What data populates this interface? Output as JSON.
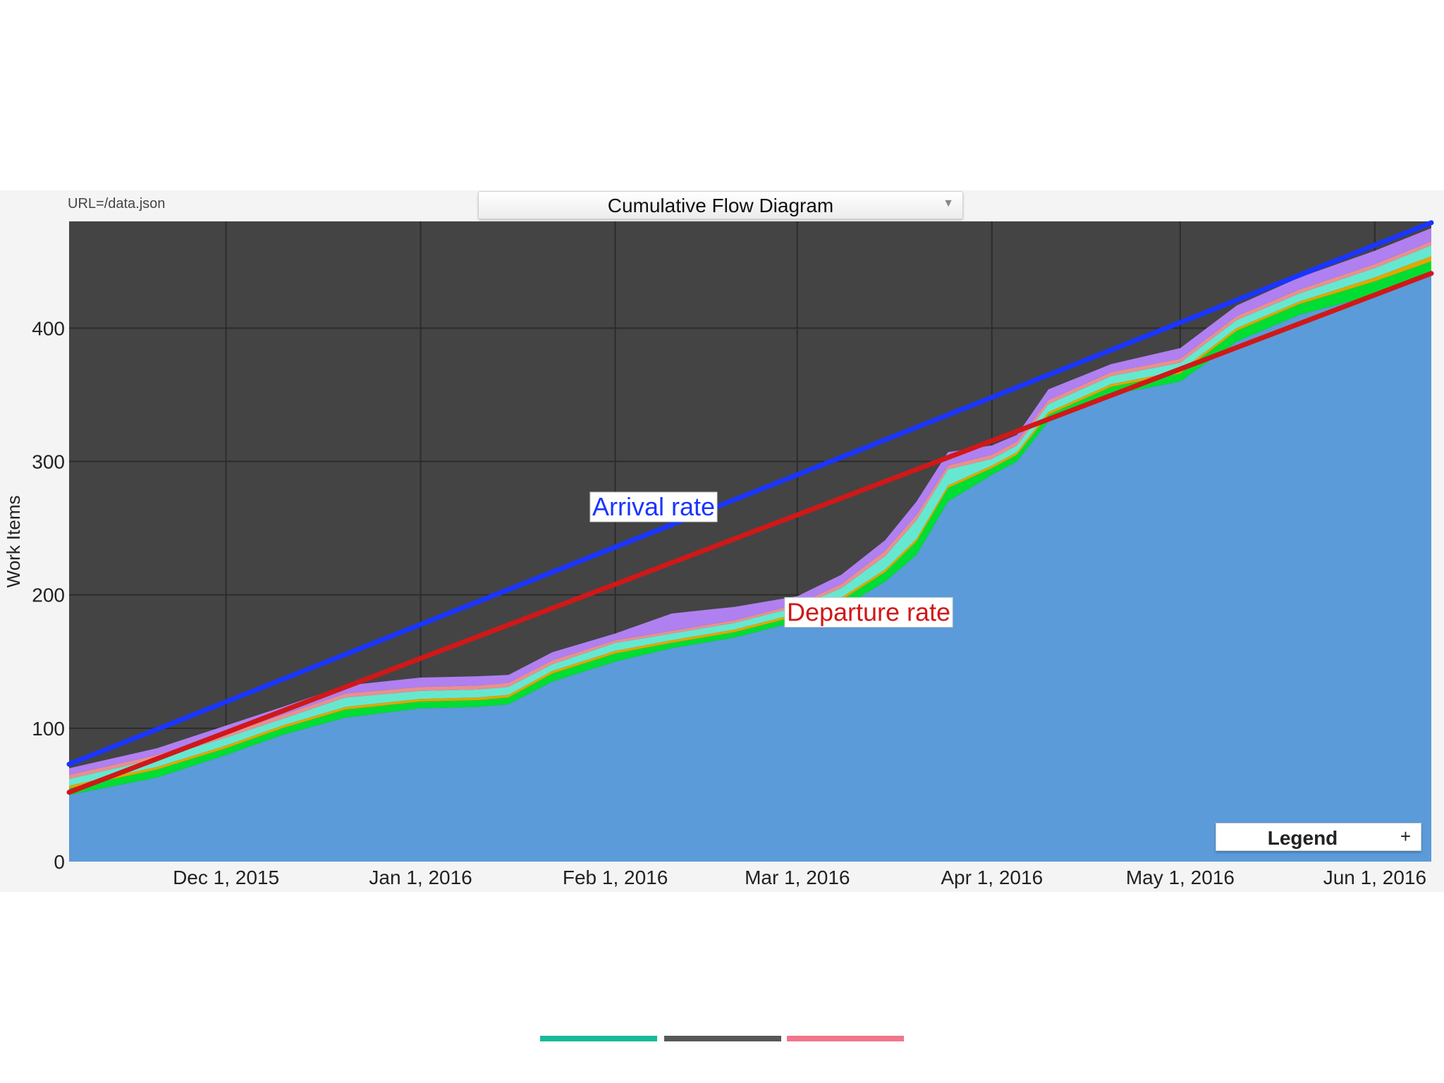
{
  "header": {
    "url_label": "URL=/data.json",
    "diagram_select": "Cumulative Flow Diagram"
  },
  "legend_button": {
    "label": "Legend",
    "plus": "+"
  },
  "chart_data": {
    "type": "area",
    "title": "Cumulative Flow Diagram",
    "xlabel": "",
    "ylabel": "Work Items",
    "ylim": [
      0,
      480
    ],
    "xlim": [
      "2015-11-06",
      "2016-06-10"
    ],
    "y_ticks": [
      0,
      100,
      200,
      300,
      400
    ],
    "x_ticks": [
      {
        "date": "2015-12-01",
        "label": "Dec 1, 2015"
      },
      {
        "date": "2016-01-01",
        "label": "Jan 1, 2016"
      },
      {
        "date": "2016-02-01",
        "label": "Feb 1, 2016"
      },
      {
        "date": "2016-03-01",
        "label": "Mar 1, 2016"
      },
      {
        "date": "2016-04-01",
        "label": "Apr 1, 2016"
      },
      {
        "date": "2016-05-01",
        "label": "May 1, 2016"
      },
      {
        "date": "2016-06-01",
        "label": "Jun 1, 2016"
      }
    ],
    "grid": true,
    "plot_background": "#444444",
    "x": [
      "2015-11-06",
      "2015-11-20",
      "2015-12-01",
      "2015-12-10",
      "2015-12-20",
      "2016-01-01",
      "2016-01-10",
      "2016-01-15",
      "2016-01-22",
      "2016-02-01",
      "2016-02-10",
      "2016-02-20",
      "2016-03-01",
      "2016-03-08",
      "2016-03-15",
      "2016-03-20",
      "2016-03-25",
      "2016-04-01",
      "2016-04-05",
      "2016-04-10",
      "2016-04-20",
      "2016-05-01",
      "2016-05-10",
      "2016-05-20",
      "2016-06-01",
      "2016-06-10"
    ],
    "series": [
      {
        "color": "#5b9bd9",
        "values": [
          50,
          63,
          80,
          95,
          108,
          115,
          116,
          118,
          135,
          150,
          160,
          168,
          180,
          190,
          210,
          230,
          270,
          290,
          300,
          330,
          350,
          360,
          390,
          410,
          425,
          440
        ]
      },
      {
        "color": "#00dd33",
        "values": [
          5,
          6,
          5,
          5,
          6,
          5,
          5,
          5,
          6,
          6,
          4,
          4,
          4,
          6,
          7,
          10,
          10,
          5,
          5,
          5,
          6,
          6,
          8,
          8,
          10,
          10
        ]
      },
      {
        "color": "#e0a800",
        "values": [
          2,
          2,
          2,
          2,
          2,
          2,
          2,
          2,
          2,
          2,
          2,
          2,
          2,
          2,
          2,
          2,
          2,
          2,
          2,
          2,
          2,
          2,
          2,
          2,
          3,
          4
        ]
      },
      {
        "color": "#66e8d0",
        "values": [
          5,
          6,
          6,
          5,
          7,
          6,
          6,
          6,
          5,
          6,
          5,
          5,
          5,
          7,
          10,
          14,
          12,
          5,
          5,
          6,
          6,
          6,
          6,
          6,
          7,
          8
        ]
      },
      {
        "color": "#e89090",
        "values": [
          3,
          3,
          3,
          3,
          3,
          3,
          3,
          3,
          3,
          2,
          2,
          2,
          2,
          3,
          4,
          4,
          3,
          3,
          3,
          3,
          3,
          3,
          3,
          3,
          3,
          3
        ]
      },
      {
        "color": "#b080f0",
        "values": [
          5,
          5,
          6,
          6,
          6,
          7,
          7,
          6,
          6,
          5,
          13,
          10,
          6,
          7,
          8,
          10,
          10,
          7,
          5,
          8,
          6,
          8,
          8,
          9,
          10,
          10
        ]
      }
    ],
    "trend_lines": [
      {
        "name": "Arrival rate",
        "color": "#1a35ff",
        "start": [
          "2015-11-06",
          73
        ],
        "end": [
          "2016-06-10",
          479
        ]
      },
      {
        "name": "Departure rate",
        "color": "#d01818",
        "start": [
          "2015-11-06",
          52
        ],
        "end": [
          "2016-06-10",
          441
        ]
      }
    ],
    "annotations": [
      {
        "text": "Arrival rate",
        "color": "#1a35ff",
        "anchor": [
          "2016-01-28",
          277
        ]
      },
      {
        "text": "Departure rate",
        "color": "#d01818",
        "anchor": [
          "2016-02-28",
          198
        ]
      }
    ]
  }
}
